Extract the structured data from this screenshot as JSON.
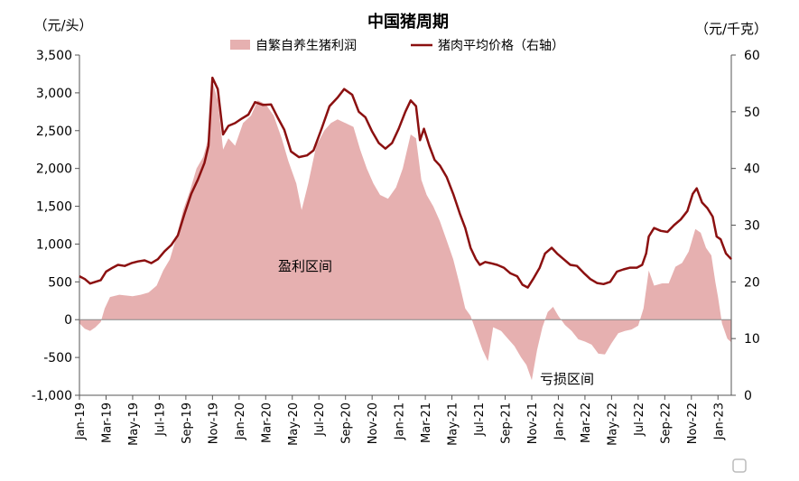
{
  "chart_data": {
    "type": "area+line",
    "title": "中国猪周期",
    "y_left_unit": "（元/头）",
    "y_right_unit": "（元/千克）",
    "y_left_range": [
      -1000,
      3500
    ],
    "y_right_range": [
      0,
      60
    ],
    "y_left_ticks": [
      "3,500",
      "3,000",
      "2,500",
      "2,000",
      "1,500",
      "1,000",
      "500",
      "0",
      "-500",
      "-1,000"
    ],
    "y_left_tick_values": [
      3500,
      3000,
      2500,
      2000,
      1500,
      1000,
      500,
      0,
      -500,
      -1000
    ],
    "y_right_ticks": [
      "60",
      "50",
      "40",
      "30",
      "20",
      "10",
      "0"
    ],
    "y_right_tick_values": [
      60,
      50,
      40,
      30,
      20,
      10,
      0
    ],
    "x_ticks": [
      "Jan-19",
      "Mar-19",
      "May-19",
      "Jul-19",
      "Sep-19",
      "Nov-19",
      "Jan-20",
      "Mar-20",
      "May-20",
      "Jul-20",
      "Sep-20",
      "Nov-20",
      "Jan-21",
      "Mar-21",
      "May-21",
      "Jul-21",
      "Sep-21",
      "Nov-21",
      "Jan-22",
      "Mar-22",
      "May-22",
      "Jul-22",
      "Sep-22",
      "Nov-22",
      "Jan-23"
    ],
    "x_tick_month_index": [
      0,
      2,
      4,
      6,
      8,
      10,
      12,
      14,
      16,
      18,
      20,
      22,
      24,
      26,
      28,
      30,
      32,
      34,
      36,
      38,
      40,
      42,
      44,
      46,
      48
    ],
    "legend": [
      "自繁自养生猪利润",
      "猪肉平均价格（右轴）"
    ],
    "annotations": [
      "盈利区间",
      "亏损区间"
    ],
    "colors": {
      "area": "#e6b0b0",
      "line": "#8b1010",
      "negative_axis_labels": "#cc0000"
    },
    "series": [
      {
        "name": "自繁自养生猪利润",
        "axis": "left",
        "style": "area",
        "points": [
          [
            0.0,
            -50
          ],
          [
            0.4,
            -120
          ],
          [
            0.8,
            -150
          ],
          [
            1.2,
            -100
          ],
          [
            1.6,
            -30
          ],
          [
            1.9,
            150
          ],
          [
            2.3,
            300
          ],
          [
            3.0,
            330
          ],
          [
            4.0,
            310
          ],
          [
            4.6,
            330
          ],
          [
            5.2,
            360
          ],
          [
            5.8,
            450
          ],
          [
            6.3,
            650
          ],
          [
            6.8,
            800
          ],
          [
            7.3,
            1100
          ],
          [
            7.8,
            1450
          ],
          [
            8.3,
            1700
          ],
          [
            8.8,
            2000
          ],
          [
            9.3,
            2150
          ],
          [
            9.7,
            2400
          ],
          [
            10.0,
            3150
          ],
          [
            10.4,
            2900
          ],
          [
            10.8,
            2250
          ],
          [
            11.2,
            2400
          ],
          [
            11.7,
            2300
          ],
          [
            12.3,
            2600
          ],
          [
            12.9,
            2700
          ],
          [
            13.4,
            2900
          ],
          [
            14.0,
            2850
          ],
          [
            14.6,
            2700
          ],
          [
            15.2,
            2400
          ],
          [
            15.7,
            2100
          ],
          [
            16.3,
            1800
          ],
          [
            16.7,
            1450
          ],
          [
            17.2,
            1800
          ],
          [
            17.8,
            2300
          ],
          [
            18.4,
            2500
          ],
          [
            18.9,
            2600
          ],
          [
            19.4,
            2650
          ],
          [
            20.0,
            2600
          ],
          [
            20.6,
            2550
          ],
          [
            21.1,
            2250
          ],
          [
            21.6,
            2000
          ],
          [
            22.1,
            1800
          ],
          [
            22.6,
            1650
          ],
          [
            23.2,
            1600
          ],
          [
            23.8,
            1750
          ],
          [
            24.3,
            2000
          ],
          [
            24.9,
            2450
          ],
          [
            25.3,
            2400
          ],
          [
            25.7,
            1850
          ],
          [
            26.1,
            1650
          ],
          [
            26.6,
            1500
          ],
          [
            27.1,
            1300
          ],
          [
            27.6,
            1050
          ],
          [
            28.1,
            800
          ],
          [
            28.6,
            450
          ],
          [
            29.0,
            150
          ],
          [
            29.4,
            50
          ],
          [
            29.8,
            -150
          ],
          [
            30.3,
            -400
          ],
          [
            30.7,
            -550
          ],
          [
            31.1,
            -100
          ],
          [
            31.7,
            -150
          ],
          [
            32.2,
            -250
          ],
          [
            32.7,
            -350
          ],
          [
            33.2,
            -500
          ],
          [
            33.6,
            -600
          ],
          [
            34.0,
            -800
          ],
          [
            34.4,
            -400
          ],
          [
            34.8,
            -100
          ],
          [
            35.2,
            100
          ],
          [
            35.6,
            170
          ],
          [
            36.0,
            50
          ],
          [
            36.5,
            -70
          ],
          [
            37.0,
            -150
          ],
          [
            37.5,
            -260
          ],
          [
            38.0,
            -290
          ],
          [
            38.5,
            -330
          ],
          [
            39.0,
            -450
          ],
          [
            39.5,
            -460
          ],
          [
            40.0,
            -310
          ],
          [
            40.5,
            -180
          ],
          [
            41.0,
            -150
          ],
          [
            41.5,
            -130
          ],
          [
            42.0,
            -80
          ],
          [
            42.4,
            150
          ],
          [
            42.8,
            650
          ],
          [
            43.2,
            450
          ],
          [
            43.8,
            480
          ],
          [
            44.3,
            480
          ],
          [
            44.8,
            700
          ],
          [
            45.3,
            750
          ],
          [
            45.8,
            900
          ],
          [
            46.3,
            1200
          ],
          [
            46.7,
            1150
          ],
          [
            47.1,
            950
          ],
          [
            47.5,
            850
          ],
          [
            47.8,
            500
          ],
          [
            48.0,
            300
          ],
          [
            48.3,
            -50
          ],
          [
            48.7,
            -250
          ],
          [
            49.0,
            -300
          ]
        ]
      },
      {
        "name": "猪肉平均价格（右轴）",
        "axis": "right",
        "style": "line",
        "points": [
          [
            0.0,
            21.0
          ],
          [
            0.4,
            20.5
          ],
          [
            0.8,
            19.7
          ],
          [
            1.2,
            20.0
          ],
          [
            1.6,
            20.3
          ],
          [
            2.0,
            21.8
          ],
          [
            2.5,
            22.5
          ],
          [
            2.9,
            23.0
          ],
          [
            3.4,
            22.8
          ],
          [
            3.9,
            23.3
          ],
          [
            4.4,
            23.6
          ],
          [
            4.9,
            23.8
          ],
          [
            5.4,
            23.3
          ],
          [
            5.9,
            24.0
          ],
          [
            6.4,
            25.4
          ],
          [
            6.9,
            26.5
          ],
          [
            7.4,
            28.2
          ],
          [
            7.9,
            32.0
          ],
          [
            8.4,
            35.5
          ],
          [
            8.9,
            38.0
          ],
          [
            9.4,
            41.0
          ],
          [
            9.7,
            44.0
          ],
          [
            10.0,
            56.0
          ],
          [
            10.4,
            54.0
          ],
          [
            10.8,
            46.0
          ],
          [
            11.2,
            47.5
          ],
          [
            11.7,
            48.0
          ],
          [
            12.2,
            48.8
          ],
          [
            12.7,
            49.5
          ],
          [
            13.2,
            51.7
          ],
          [
            13.8,
            51.2
          ],
          [
            14.4,
            51.3
          ],
          [
            14.9,
            49.0
          ],
          [
            15.4,
            46.8
          ],
          [
            15.9,
            43.0
          ],
          [
            16.5,
            42.0
          ],
          [
            17.1,
            42.3
          ],
          [
            17.6,
            43.2
          ],
          [
            18.2,
            47.0
          ],
          [
            18.8,
            51.0
          ],
          [
            19.4,
            52.5
          ],
          [
            19.9,
            54.0
          ],
          [
            20.5,
            53.0
          ],
          [
            21.0,
            50.0
          ],
          [
            21.5,
            49.0
          ],
          [
            22.0,
            46.5
          ],
          [
            22.5,
            44.5
          ],
          [
            23.0,
            43.5
          ],
          [
            23.5,
            44.5
          ],
          [
            24.0,
            47.0
          ],
          [
            24.5,
            50.0
          ],
          [
            24.9,
            52.0
          ],
          [
            25.3,
            51.0
          ],
          [
            25.6,
            45.0
          ],
          [
            25.9,
            47.0
          ],
          [
            26.3,
            44.0
          ],
          [
            26.7,
            41.5
          ],
          [
            27.1,
            40.5
          ],
          [
            27.6,
            38.5
          ],
          [
            28.1,
            35.5
          ],
          [
            28.6,
            32.0
          ],
          [
            29.0,
            29.5
          ],
          [
            29.4,
            26.0
          ],
          [
            29.8,
            24.0
          ],
          [
            30.1,
            23.0
          ],
          [
            30.5,
            23.5
          ],
          [
            30.9,
            23.3
          ],
          [
            31.4,
            23.0
          ],
          [
            31.9,
            22.5
          ],
          [
            32.4,
            21.5
          ],
          [
            32.9,
            21.0
          ],
          [
            33.3,
            19.5
          ],
          [
            33.7,
            19.0
          ],
          [
            34.1,
            20.5
          ],
          [
            34.6,
            22.5
          ],
          [
            35.0,
            25.0
          ],
          [
            35.5,
            26.0
          ],
          [
            35.9,
            25.0
          ],
          [
            36.4,
            24.0
          ],
          [
            36.9,
            23.0
          ],
          [
            37.4,
            22.8
          ],
          [
            37.9,
            21.6
          ],
          [
            38.4,
            20.5
          ],
          [
            38.9,
            19.8
          ],
          [
            39.4,
            19.6
          ],
          [
            39.9,
            20.0
          ],
          [
            40.4,
            21.8
          ],
          [
            40.9,
            22.2
          ],
          [
            41.4,
            22.5
          ],
          [
            41.9,
            22.5
          ],
          [
            42.3,
            23.0
          ],
          [
            42.6,
            25.0
          ],
          [
            42.8,
            28.0
          ],
          [
            43.2,
            29.5
          ],
          [
            43.7,
            29.0
          ],
          [
            44.2,
            28.8
          ],
          [
            44.7,
            30.0
          ],
          [
            45.2,
            31.0
          ],
          [
            45.7,
            32.5
          ],
          [
            46.1,
            35.5
          ],
          [
            46.4,
            36.5
          ],
          [
            46.8,
            34.0
          ],
          [
            47.2,
            33.0
          ],
          [
            47.6,
            31.5
          ],
          [
            47.9,
            28.0
          ],
          [
            48.2,
            27.5
          ],
          [
            48.6,
            25.0
          ],
          [
            49.0,
            24.0
          ]
        ]
      }
    ]
  }
}
